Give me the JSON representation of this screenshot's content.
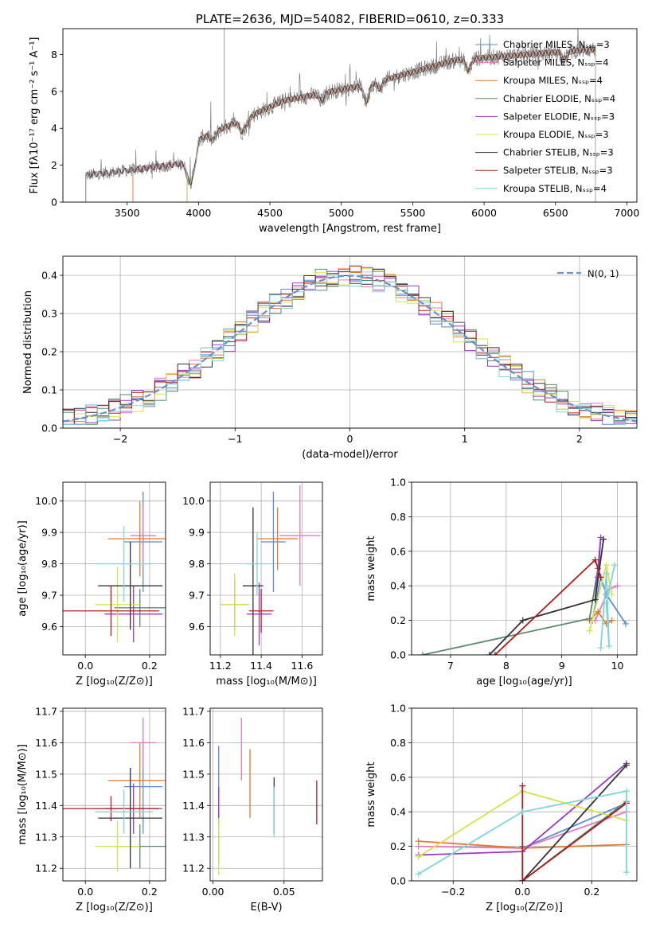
{
  "chart_data": [
    {
      "id": "spectrum",
      "type": "line",
      "title": "PLATE=2636, MJD=54082, FIBERID=0610, z=0.333",
      "xlabel": "wavelength [Angstrom, rest frame]",
      "ylabel": "Flux [fλ10⁻¹⁷ erg cm⁻² s⁻¹ A⁻¹]",
      "xlim": [
        3050,
        7070
      ],
      "ylim": [
        0,
        9.4
      ],
      "xticks": [
        3500,
        4000,
        4500,
        5000,
        5500,
        6000,
        6500,
        7000
      ],
      "yticks": [
        0,
        2,
        4,
        6,
        8
      ],
      "grid": false,
      "legend_position": "upper-right",
      "data_color": "#7f7f7f",
      "data_range": [
        3210,
        6780
      ],
      "series": [
        {
          "name": "Chabrier MILES, N_SSP=3",
          "color": "#5b8bd9",
          "start": 3540
        },
        {
          "name": "Salpeter MILES, N_SSP=4",
          "color": "#e377c2",
          "start": 3540
        },
        {
          "name": "Kroupa MILES, N_SSP=4",
          "color": "#e07a2e",
          "start": 3540
        },
        {
          "name": "Chabrier ELODIE, N_SSP=4",
          "color": "#5a8a6a",
          "start": 3920
        },
        {
          "name": "Salpeter ELODIE, N_SSP=3",
          "color": "#9b39c4",
          "start": 3920
        },
        {
          "name": "Kroupa ELODIE, N_SSP=3",
          "color": "#d4e34a",
          "start": 3920
        },
        {
          "name": "Chabrier STELIB, N_SSP=3",
          "color": "#333333",
          "start": 3210
        },
        {
          "name": "Salpeter STELIB, N_SSP=3",
          "color": "#b01c1c",
          "start": 3210
        },
        {
          "name": "Kroupa STELIB, N_SSP=4",
          "color": "#7fd6d9",
          "start": 3210
        }
      ]
    },
    {
      "id": "residuals",
      "type": "line",
      "xlabel": "(data-model)/error",
      "ylabel": "Normed distribution",
      "xlim": [
        -2.5,
        2.5
      ],
      "ylim": [
        0,
        0.45
      ],
      "xticks": [
        -2,
        -1,
        0,
        1,
        2
      ],
      "yticks": [
        0.0,
        0.1,
        0.2,
        0.3,
        0.4
      ],
      "grid": true,
      "legend": "Ν(0, 1)",
      "legend_position": "upper-right",
      "gaussian": {
        "mean": 0,
        "sigma": 1,
        "color": "#6a8fd6"
      },
      "bins": 50,
      "hist_colors": [
        "#5b8bd9",
        "#e377c2",
        "#e07a2e",
        "#5a8a6a",
        "#9b39c4",
        "#d4e34a",
        "#333333",
        "#b01c1c",
        "#7fd6d9"
      ]
    },
    {
      "id": "age_vs_Z",
      "type": "errorbar",
      "xlabel": "Z [log₁₀(Z/Z⊙)]",
      "ylabel": "age  [log₁₀(age/yr)]",
      "xlim": [
        -0.07,
        0.25
      ],
      "ylim": [
        9.51,
        10.06
      ],
      "xticks": [
        0.0,
        0.2
      ],
      "yticks": [
        9.6,
        9.7,
        9.8,
        9.9,
        10.0
      ],
      "grid": true,
      "points": [
        {
          "x": 0.18,
          "y": 9.87,
          "xerr": 0.06,
          "yerr": 0.16,
          "color": "#5b8bd9"
        },
        {
          "x": 0.18,
          "y": 9.89,
          "xerr": 0.04,
          "yerr": 0.1,
          "color": "#e377c2"
        },
        {
          "x": 0.17,
          "y": 9.88,
          "xerr": 0.1,
          "yerr": 0.12,
          "color": "#e07a2e"
        },
        {
          "x": 0.17,
          "y": 9.66,
          "xerr": 0.08,
          "yerr": 0.06,
          "color": "#5a8a6a"
        },
        {
          "x": 0.15,
          "y": 9.64,
          "xerr": 0.09,
          "yerr": 0.09,
          "color": "#9b39c4"
        },
        {
          "x": 0.1,
          "y": 9.67,
          "xerr": 0.07,
          "yerr": 0.12,
          "color": "#d4e34a"
        },
        {
          "x": 0.14,
          "y": 9.73,
          "xerr": 0.1,
          "yerr": 0.14,
          "color": "#333333"
        },
        {
          "x": 0.08,
          "y": 9.65,
          "xerr": 0.15,
          "yerr": 0.08,
          "color": "#b01c1c"
        },
        {
          "x": 0.12,
          "y": 9.8,
          "xerr": 0.09,
          "yerr": 0.12,
          "color": "#7fd6d9"
        }
      ]
    },
    {
      "id": "age_vs_mass",
      "type": "errorbar",
      "xlabel": "mass [log₁₀(M/M⊙)]",
      "ylabel": "",
      "xlim": [
        11.15,
        11.7
      ],
      "ylim": [
        9.51,
        10.06
      ],
      "xticks": [
        11.2,
        11.4,
        11.6
      ],
      "yticks": [
        9.6,
        9.7,
        9.8,
        9.9,
        10.0
      ],
      "grid": true,
      "points": [
        {
          "x": 11.46,
          "y": 9.87,
          "xerr": 0.06,
          "yerr": 0.16,
          "color": "#5b8bd9"
        },
        {
          "x": 11.59,
          "y": 9.89,
          "xerr": 0.1,
          "yerr": 0.16,
          "color": "#e377c2"
        },
        {
          "x": 11.48,
          "y": 9.88,
          "xerr": 0.1,
          "yerr": 0.1,
          "color": "#e07a2e"
        },
        {
          "x": 11.27,
          "y": 9.67,
          "xerr": 0.07,
          "yerr": 0.08,
          "color": "#5a8a6a"
        },
        {
          "x": 11.39,
          "y": 9.64,
          "xerr": 0.06,
          "yerr": 0.1,
          "color": "#9b39c4"
        },
        {
          "x": 11.27,
          "y": 9.67,
          "xerr": 0.07,
          "yerr": 0.1,
          "color": "#d4e34a"
        },
        {
          "x": 11.36,
          "y": 9.73,
          "xerr": 0.05,
          "yerr": 0.25,
          "color": "#333333"
        },
        {
          "x": 11.4,
          "y": 9.65,
          "xerr": 0.06,
          "yerr": 0.07,
          "color": "#b01c1c"
        },
        {
          "x": 11.38,
          "y": 9.8,
          "xerr": 0.05,
          "yerr": 0.1,
          "color": "#7fd6d9"
        }
      ]
    },
    {
      "id": "weight_vs_age",
      "type": "line",
      "xlabel": "age  [log₁₀(age/yr)]",
      "ylabel": "mass weight",
      "xlim": [
        6.3,
        10.35
      ],
      "ylim": [
        0,
        1.0
      ],
      "xticks": [
        7,
        8,
        9,
        10
      ],
      "yticks": [
        0.0,
        0.2,
        0.4,
        0.6,
        0.8,
        1.0
      ],
      "grid": true,
      "series": [
        {
          "color": "#5b8bd9",
          "x": [
            9.55,
            9.7,
            9.8,
            10.15
          ],
          "y": [
            0.2,
            0.45,
            0.35,
            0.18
          ]
        },
        {
          "color": "#e377c2",
          "x": [
            9.6,
            9.85,
            10.0
          ],
          "y": [
            0.2,
            0.38,
            0.4
          ]
        },
        {
          "color": "#e07a2e",
          "x": [
            9.5,
            9.65,
            9.8,
            9.9
          ],
          "y": [
            0.2,
            0.25,
            0.18,
            0.2
          ]
        },
        {
          "color": "#5a8a6a",
          "x": [
            6.5,
            9.5,
            9.65
          ],
          "y": [
            0.0,
            0.21,
            0.5
          ]
        },
        {
          "color": "#9b39c4",
          "x": [
            9.6,
            9.7,
            9.65
          ],
          "y": [
            0.32,
            0.68,
            0.45
          ]
        },
        {
          "color": "#d4e34a",
          "x": [
            9.5,
            9.8,
            9.9
          ],
          "y": [
            0.14,
            0.52,
            0.35
          ]
        },
        {
          "color": "#333333",
          "x": [
            7.7,
            8.3,
            9.6,
            9.75
          ],
          "y": [
            0.0,
            0.2,
            0.32,
            0.67
          ]
        },
        {
          "color": "#b01c1c",
          "x": [
            7.8,
            9.6,
            9.7
          ],
          "y": [
            0.0,
            0.55,
            0.45
          ]
        },
        {
          "color": "#7fd6d9",
          "x": [
            9.7,
            9.8,
            9.85,
            9.8,
            9.95
          ],
          "y": [
            0.04,
            0.47,
            0.05,
            0.3,
            0.52
          ]
        }
      ]
    },
    {
      "id": "mass_vs_Z",
      "type": "errorbar",
      "xlabel": "Z [log₁₀(Z/Z⊙)]",
      "ylabel": "mass [log₁₀(M/M⊙)]",
      "xlim": [
        -0.07,
        0.25
      ],
      "ylim": [
        11.16,
        11.71
      ],
      "xticks": [
        0.0,
        0.2
      ],
      "yticks": [
        11.2,
        11.3,
        11.4,
        11.5,
        11.6,
        11.7
      ],
      "grid": true,
      "points": [
        {
          "x": 0.18,
          "y": 11.46,
          "xerr": 0.06,
          "yerr": 0.15,
          "color": "#5b8bd9"
        },
        {
          "x": 0.18,
          "y": 11.6,
          "xerr": 0.04,
          "yerr": 0.08,
          "color": "#e377c2"
        },
        {
          "x": 0.17,
          "y": 11.48,
          "xerr": 0.1,
          "yerr": 0.12,
          "color": "#e07a2e"
        },
        {
          "x": 0.17,
          "y": 11.27,
          "xerr": 0.08,
          "yerr": 0.07,
          "color": "#5a8a6a"
        },
        {
          "x": 0.15,
          "y": 11.39,
          "xerr": 0.09,
          "yerr": 0.08,
          "color": "#9b39c4"
        },
        {
          "x": 0.1,
          "y": 11.27,
          "xerr": 0.07,
          "yerr": 0.08,
          "color": "#d4e34a"
        },
        {
          "x": 0.14,
          "y": 11.36,
          "xerr": 0.1,
          "yerr": 0.16,
          "color": "#333333"
        },
        {
          "x": 0.08,
          "y": 11.39,
          "xerr": 0.15,
          "yerr": 0.04,
          "color": "#b01c1c"
        },
        {
          "x": 0.12,
          "y": 11.38,
          "xerr": 0.09,
          "yerr": 0.07,
          "color": "#7fd6d9"
        }
      ]
    },
    {
      "id": "mass_vs_ebv",
      "type": "errorbar",
      "xlabel": "E(B-V)",
      "ylabel": "",
      "xlim": [
        -0.002,
        0.077
      ],
      "ylim": [
        11.16,
        11.71
      ],
      "xticks": [
        0.0,
        0.05
      ],
      "yticks": [
        11.2,
        11.3,
        11.4,
        11.5,
        11.6,
        11.7
      ],
      "grid": true,
      "points": [
        {
          "x": 0.004,
          "y": 11.46,
          "xerr": 0,
          "yerr": 0.13,
          "color": "#5b8bd9"
        },
        {
          "x": 0.02,
          "y": 11.58,
          "xerr": 0,
          "yerr": 0.1,
          "color": "#e377c2"
        },
        {
          "x": 0.026,
          "y": 11.47,
          "xerr": 0,
          "yerr": 0.11,
          "color": "#e07a2e"
        },
        {
          "x": 0.004,
          "y": 11.27,
          "xerr": 0,
          "yerr": 0.05,
          "color": "#5a8a6a"
        },
        {
          "x": 0.004,
          "y": 11.4,
          "xerr": 0,
          "yerr": 0.06,
          "color": "#9b39c4"
        },
        {
          "x": 0.004,
          "y": 11.27,
          "xerr": 0,
          "yerr": 0.09,
          "color": "#d4e34a"
        },
        {
          "x": 0.043,
          "y": 11.4,
          "xerr": 0,
          "yerr": 0.09,
          "color": "#333333"
        },
        {
          "x": 0.073,
          "y": 11.41,
          "xerr": 0,
          "yerr": 0.07,
          "color": "#b01c1c"
        },
        {
          "x": 0.043,
          "y": 11.38,
          "xerr": 0,
          "yerr": 0.08,
          "color": "#7fd6d9"
        }
      ]
    },
    {
      "id": "weight_vs_Z",
      "type": "line",
      "xlabel": "Z [log₁₀(Z/Z⊙)]",
      "ylabel": "mass weight",
      "xlim": [
        -0.32,
        0.33
      ],
      "ylim": [
        0,
        1.0
      ],
      "xticks": [
        -0.2,
        0.0,
        0.2
      ],
      "yticks": [
        0.0,
        0.2,
        0.4,
        0.6,
        0.8,
        1.0
      ],
      "grid": true,
      "series": [
        {
          "color": "#5b8bd9",
          "x": [
            0.0,
            0.0,
            0.3
          ],
          "y": [
            0.2,
            0.19,
            0.45
          ]
        },
        {
          "color": "#e377c2",
          "x": [
            -0.3,
            0.0,
            0.3
          ],
          "y": [
            0.2,
            0.19,
            0.4
          ]
        },
        {
          "color": "#e07a2e",
          "x": [
            -0.3,
            0.0,
            0.3
          ],
          "y": [
            0.23,
            0.19,
            0.21
          ]
        },
        {
          "color": "#5a8a6a",
          "x": [
            0.0,
            0.0,
            0.3
          ],
          "y": [
            0.2,
            0.0,
            0.46
          ]
        },
        {
          "color": "#9b39c4",
          "x": [
            -0.3,
            0.0,
            0.3
          ],
          "y": [
            0.15,
            0.17,
            0.68
          ]
        },
        {
          "color": "#d4e34a",
          "x": [
            -0.3,
            0.0,
            0.3
          ],
          "y": [
            0.14,
            0.52,
            0.35
          ]
        },
        {
          "color": "#333333",
          "x": [
            0.0,
            0.0,
            0.3
          ],
          "y": [
            0.0,
            0.0,
            0.67
          ]
        },
        {
          "color": "#b01c1c",
          "x": [
            0.0,
            0.0,
            0.3
          ],
          "y": [
            0.55,
            0.0,
            0.45
          ]
        },
        {
          "color": "#7fd6d9",
          "x": [
            -0.3,
            0.0,
            0.3,
            0.3
          ],
          "y": [
            0.04,
            0.4,
            0.52,
            0.05
          ]
        }
      ]
    }
  ]
}
